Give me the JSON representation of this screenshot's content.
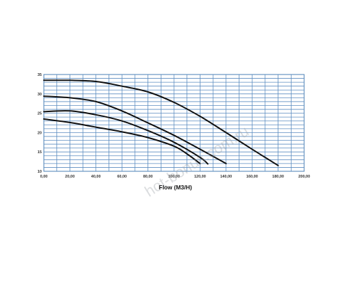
{
  "chart_data": {
    "type": "line",
    "title": "",
    "xlabel": "Flow (M3/H)",
    "ylabel": "",
    "xlim": [
      0,
      200
    ],
    "ylim": [
      10,
      35
    ],
    "x_ticks": [
      "0,00",
      "20,00",
      "40,00",
      "60,00",
      "80,00",
      "100,00",
      "120,00",
      "140,00",
      "160,00",
      "180,00",
      "200,00"
    ],
    "y_ticks": [
      "10",
      "15",
      "20",
      "25",
      "30",
      "35"
    ],
    "grid": true,
    "legend": "none",
    "watermark": "hot-bonus.com.ru",
    "series": [
      {
        "x": [
          0,
          20,
          40,
          60,
          80,
          100,
          120,
          140,
          160,
          180
        ],
        "y": [
          33.5,
          33.5,
          33.2,
          32.0,
          30.5,
          27.8,
          24.2,
          20.0,
          15.7,
          11.5
        ]
      },
      {
        "x": [
          0,
          20,
          40,
          60,
          80,
          100,
          120,
          140
        ],
        "y": [
          29.4,
          29.0,
          28.0,
          25.6,
          22.5,
          19.3,
          15.7,
          12.0
        ]
      },
      {
        "x": [
          0,
          20,
          40,
          60,
          80,
          100,
          120,
          126
        ],
        "y": [
          25.4,
          25.6,
          24.6,
          23.0,
          20.5,
          17.5,
          13.6,
          11.9
        ]
      },
      {
        "x": [
          0,
          20,
          40,
          60,
          80,
          100,
          110,
          120
        ],
        "y": [
          23.5,
          22.6,
          21.4,
          20.2,
          18.7,
          16.5,
          14.5,
          12.0
        ]
      }
    ]
  }
}
